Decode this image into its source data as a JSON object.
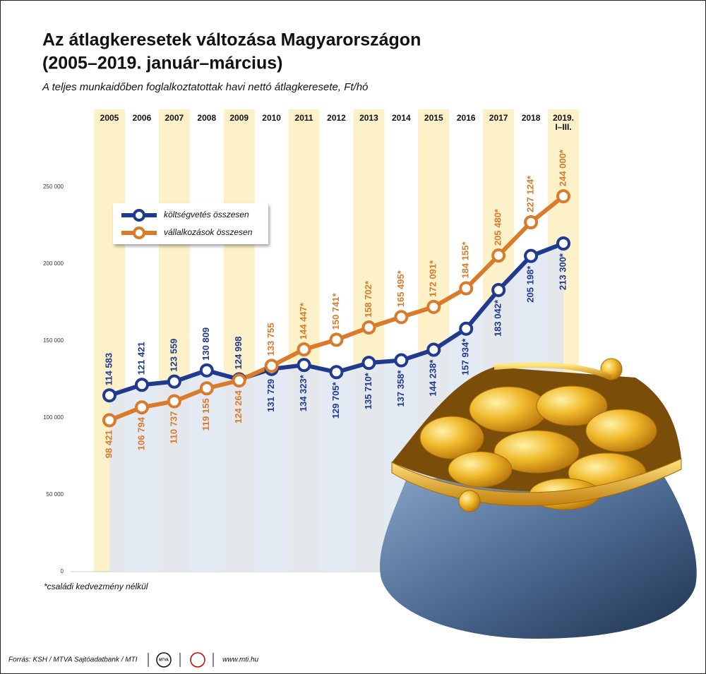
{
  "chart_data": {
    "type": "line",
    "title": [
      "Az átlagkeresetek változása Magyarországon",
      "(2005–2019. január–március)"
    ],
    "subtitle": "A teljes munkaidőben foglalkoztatottak havi nettó átlagkeresete, Ft/hó",
    "categories": [
      "2005",
      "2006",
      "2007",
      "2008",
      "2009",
      "2010",
      "2011",
      "2012",
      "2013",
      "2014",
      "2015",
      "2016",
      "2017",
      "2018",
      "2019. I–III."
    ],
    "series": [
      {
        "name": "költségvetés összesen",
        "color": "#1f3a8f",
        "values": [
          114583,
          121421,
          123559,
          130809,
          124998,
          131729,
          134323,
          129705,
          135710,
          137358,
          144238,
          157934,
          183042,
          205198,
          213300
        ],
        "value_labels": [
          "114 583",
          "121 421",
          "123 559",
          "130 809",
          "124 998",
          "131 729",
          "134 323*",
          "129 705*",
          "135 710*",
          "137 358*",
          "144 238*",
          "157 934*",
          "183 042*",
          "205 198*",
          "213 300*"
        ]
      },
      {
        "name": "vállalkozások összesen",
        "color": "#d97b2a",
        "values": [
          98421,
          106794,
          110737,
          119155,
          124264,
          133755,
          144447,
          150741,
          158702,
          165495,
          172091,
          184155,
          205480,
          227124,
          244000
        ],
        "value_labels": [
          "98 421",
          "106 794",
          "110 737",
          "119 155",
          "124 264",
          "133 755",
          "144 447*",
          "150 741*",
          "158 702*",
          "165 495*",
          "172 091*",
          "184 155*",
          "205 480*",
          "227 124*",
          "244 000*"
        ]
      }
    ],
    "ylim": [
      0,
      250000
    ],
    "yticks": [
      0,
      {
        "value": 50000,
        "label": "50 000"
      },
      {
        "value": 100000,
        "label": "100 000"
      },
      {
        "value": 150000,
        "label": "150 000"
      },
      {
        "value": 200000,
        "label": "200 000"
      },
      {
        "value": 250000,
        "label": "250 000"
      }
    ],
    "grid": false,
    "footnote": "*családi kedvezmény nélkül",
    "source": "Forrás: KSH / MTVA Sajtóadatbank / MTI",
    "logo_text": "MTVA",
    "website": "www.mti.hu"
  }
}
